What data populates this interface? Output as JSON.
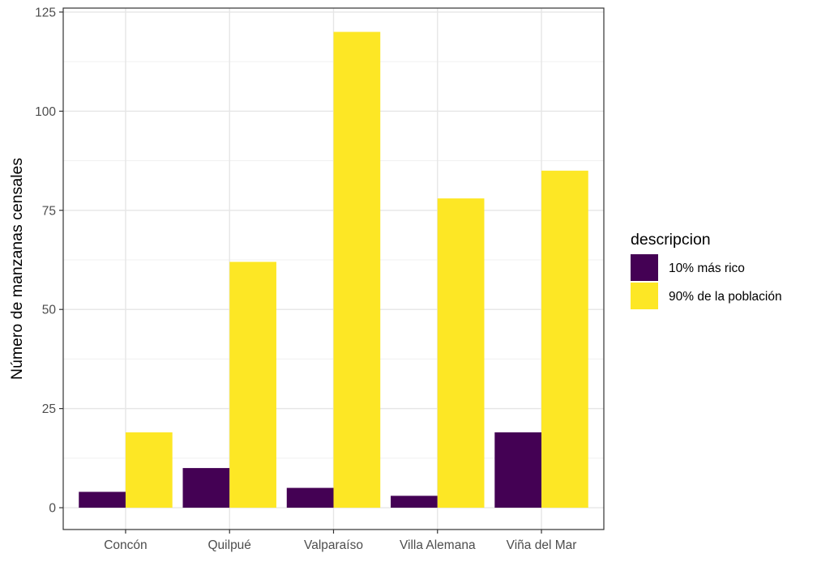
{
  "chart_data": {
    "type": "bar",
    "title": "",
    "xlabel": "",
    "ylabel": "Número de manzanas censales",
    "categories": [
      "Concón",
      "Quilpué",
      "Valparaíso",
      "Villa Alemana",
      "Viña del Mar"
    ],
    "series": [
      {
        "name": "10% más rico",
        "color": "#440154",
        "values": [
          4,
          10,
          5,
          3,
          19
        ]
      },
      {
        "name": "90% de la población",
        "color": "#FDE725",
        "values": [
          19,
          62,
          120,
          78,
          85
        ]
      }
    ],
    "ylim": [
      -5.5,
      126
    ],
    "yticks": [
      0,
      25,
      50,
      75,
      100,
      125
    ],
    "ytick_labels": [
      "0",
      "25",
      "50",
      "75",
      "100",
      "125"
    ],
    "grid": true,
    "legend": {
      "title": "descripcion",
      "position": "right"
    }
  }
}
